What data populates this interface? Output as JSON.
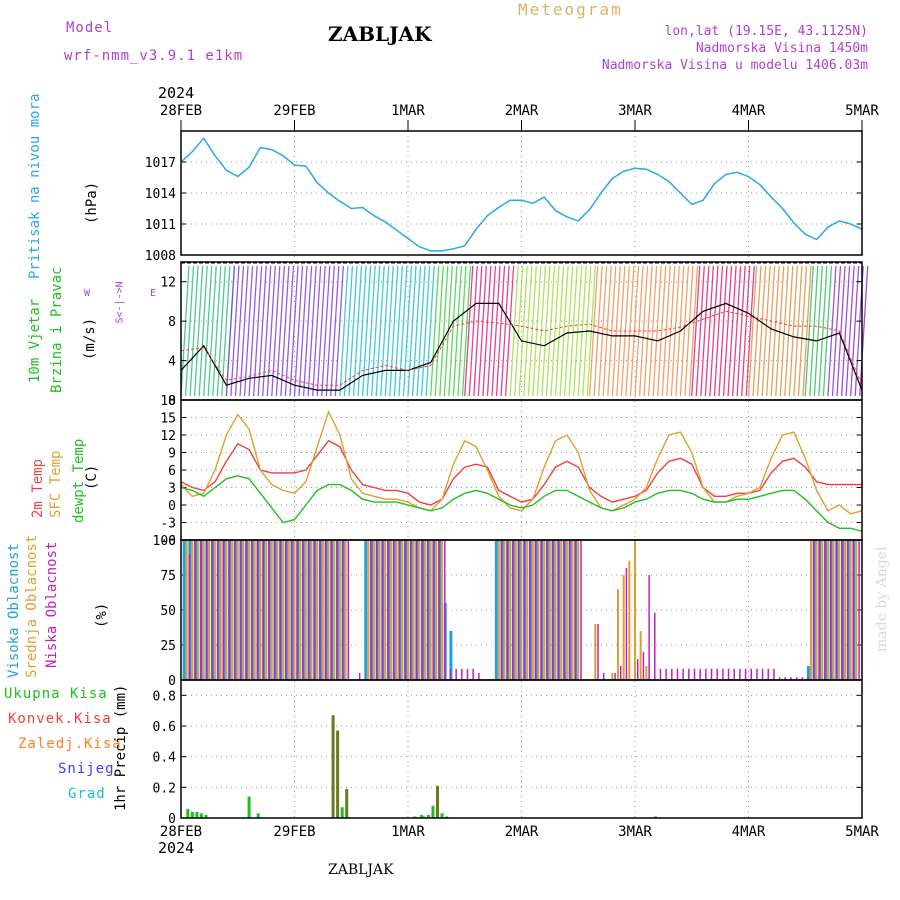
{
  "header": {
    "model_label": "Model",
    "model_name": "wrf-nmm_v3.9.1 e1km",
    "title": "ZABLJAK",
    "meteogram": "Meteogram",
    "lonlat": "lon,lat (19.15E, 43.1125N)",
    "elevation": "Nadmorska Visina 1450m",
    "model_elevation": "Nadmorska Visina u modelu 1406.03m",
    "footer_title": "ZABLJAK",
    "watermark": "made by Angel"
  },
  "x_axis": {
    "year_top": "2024",
    "year_bottom": "2024",
    "ticks": [
      "28FEB",
      "29FEB",
      "1MAR",
      "2MAR",
      "3MAR",
      "4MAR",
      "5MAR"
    ]
  },
  "colors": {
    "pressure": "#28a8e8",
    "temp2m": "#ee4040",
    "sfc": "#e0a030",
    "dewpt": "#20c020",
    "high_cloud": "#20a0e0",
    "mid_cloud": "#e0a030",
    "low_cloud": "#c020c0",
    "total_precip": "#20c020",
    "convective": "#ee4040",
    "frozen": "#ff8020",
    "snow": "#4040ee",
    "hail": "#20c0c0",
    "accum_bar": "#6b7a20"
  },
  "panels": {
    "pressure": {
      "label": "Pritisak na nivou mora",
      "unit": "(hPa)"
    },
    "wind": {
      "label1": "10m Vjetar",
      "label2": "Brzina i Pravac",
      "unit": "(m/s)",
      "compass_w": "W",
      "compass_e": "E",
      "compass_arrows": "α<-|->z",
      "compass_sn": "S<-|->N"
    },
    "temp": {
      "label1": "2m Temp",
      "label2": "SFC Temp",
      "label3": "dewpt Temp",
      "unit": "(C)"
    },
    "cloud": {
      "label1": "Visoka Oblacnost",
      "label2": "Srednja Oblacnost",
      "label3": "Niska Oblacnost",
      "unit": "(%)"
    },
    "precip": {
      "legend": [
        "Ukupna Kisa",
        "Konvek.Kisa",
        "Zaledj.Kisa",
        "Snijeg",
        "Grad"
      ],
      "ylabel": "1hr Precip (mm)"
    }
  },
  "chart_data": [
    {
      "type": "line",
      "panel": "pressure",
      "ylabel": "(hPa)",
      "ylim": [
        1008,
        1020
      ],
      "yticks": [
        "1008",
        "1011",
        "1014",
        "1017"
      ],
      "x_days": [
        0,
        0.1,
        0.2,
        0.3,
        0.4,
        0.5,
        0.6,
        0.7,
        0.8,
        0.9,
        1.0,
        1.1,
        1.2,
        1.3,
        1.4,
        1.5,
        1.6,
        1.7,
        1.8,
        1.9,
        2.0,
        2.1,
        2.2,
        2.3,
        2.4,
        2.5,
        2.6,
        2.7,
        2.8,
        2.9,
        3.0,
        3.1,
        3.2,
        3.3,
        3.4,
        3.5,
        3.6,
        3.7,
        3.8,
        3.9,
        4.0,
        4.1,
        4.2,
        4.3,
        4.4,
        4.5,
        4.6,
        4.7,
        4.8,
        4.9,
        5.0,
        5.1,
        5.2,
        5.3,
        5.4,
        5.5,
        5.6,
        5.7,
        5.8,
        5.9,
        6.0
      ],
      "series": [
        {
          "values": [
            1017,
            1018,
            1019.3,
            1017.6,
            1016.2,
            1015.6,
            1016.5,
            1018.4,
            1018.2,
            1017.6,
            1016.7,
            1016.6,
            1015.0,
            1014.0,
            1013.2,
            1012.5,
            1012.6,
            1011.8,
            1011.2,
            1010.4,
            1009.6,
            1008.8,
            1008.4,
            1008.4,
            1008.6,
            1008.9,
            1010.5,
            1011.8,
            1012.6,
            1013.3,
            1013.3,
            1013.0,
            1013.6,
            1012.3,
            1011.7,
            1011.3,
            1012.4,
            1014.0,
            1015.4,
            1016.1,
            1016.4,
            1016.3,
            1015.8,
            1015.1,
            1014.0,
            1012.9,
            1013.3,
            1014.9,
            1015.8,
            1016.0,
            1015.6,
            1014.8,
            1013.6,
            1012.5,
            1011.1,
            1010.0,
            1009.5,
            1010.7,
            1011.3,
            1011.0,
            1010.5
          ]
        }
      ]
    },
    {
      "type": "line",
      "panel": "wind",
      "ylabel": "(m/s)",
      "ylim": [
        0,
        14
      ],
      "yticks": [
        "0",
        "4",
        "8",
        "12"
      ],
      "x_days": [
        0,
        0.2,
        0.4,
        0.6,
        0.8,
        1.0,
        1.2,
        1.4,
        1.6,
        1.8,
        2.0,
        2.2,
        2.4,
        2.6,
        2.8,
        3.0,
        3.2,
        3.4,
        3.6,
        3.8,
        4.0,
        4.2,
        4.4,
        4.6,
        4.8,
        5.0,
        5.2,
        5.4,
        5.6,
        5.8,
        6.0
      ],
      "series": [
        {
          "values": [
            3,
            5.5,
            1.5,
            2.2,
            2.5,
            1.5,
            1.0,
            1.0,
            2.5,
            3.0,
            3.0,
            3.8,
            8.0,
            9.8,
            9.8,
            6.0,
            5.5,
            6.8,
            7.0,
            6.5,
            6.5,
            6.0,
            7.0,
            9.0,
            9.8,
            8.8,
            7.2,
            6.4,
            6.0,
            6.8,
            1.0
          ]
        },
        {
          "values": [
            5,
            5.3,
            2.0,
            2.4,
            3.0,
            2.0,
            1.5,
            1.5,
            3.0,
            3.5,
            3.0,
            3.5,
            7.5,
            8.0,
            7.8,
            7.5,
            7.0,
            7.5,
            7.7,
            7.0,
            7.0,
            7.0,
            7.4,
            8.2,
            9.0,
            8.5,
            8.0,
            7.5,
            7.5,
            7.0,
            1.5
          ]
        }
      ]
    },
    {
      "type": "line",
      "panel": "temp",
      "ylabel": "(C)",
      "ylim": [
        -6,
        18
      ],
      "yticks": [
        "-6",
        "-3",
        "0",
        "3",
        "6",
        "9",
        "12",
        "15",
        "18"
      ],
      "x_days": [
        0,
        0.1,
        0.2,
        0.3,
        0.4,
        0.5,
        0.6,
        0.7,
        0.8,
        0.9,
        1.0,
        1.1,
        1.2,
        1.3,
        1.4,
        1.5,
        1.6,
        1.7,
        1.8,
        1.9,
        2.0,
        2.1,
        2.2,
        2.3,
        2.4,
        2.5,
        2.6,
        2.7,
        2.8,
        2.9,
        3.0,
        3.1,
        3.2,
        3.3,
        3.4,
        3.5,
        3.6,
        3.7,
        3.8,
        3.9,
        4.0,
        4.1,
        4.2,
        4.3,
        4.4,
        4.5,
        4.6,
        4.7,
        4.8,
        4.9,
        5.0,
        5.1,
        5.2,
        5.3,
        5.4,
        5.5,
        5.6,
        5.7,
        5.8,
        5.9,
        6.0
      ],
      "series": [
        {
          "name": "2m Temp",
          "values": [
            4,
            3,
            2.5,
            4,
            7.5,
            10.5,
            9.5,
            6,
            5.5,
            5.5,
            5.5,
            6,
            8.5,
            11,
            10,
            6,
            3.5,
            3,
            2.5,
            2.5,
            2.0,
            0.5,
            0,
            1,
            4.5,
            6.5,
            7,
            6.5,
            2.5,
            1.5,
            0.5,
            1,
            3.5,
            6.5,
            7.5,
            6.5,
            3,
            1.5,
            0.5,
            1,
            1.5,
            2.5,
            5.5,
            7.5,
            8,
            7,
            3,
            1.5,
            1.5,
            2,
            2,
            2.5,
            5.5,
            7.5,
            8,
            6.5,
            4,
            3.5,
            3.5,
            3.5,
            3.5
          ]
        },
        {
          "name": "SFC Temp",
          "values": [
            3.5,
            1.5,
            2,
            6,
            12,
            15.5,
            13,
            6,
            3.5,
            2.5,
            2,
            4,
            10,
            16,
            12,
            4.5,
            2,
            1.5,
            1,
            1,
            0.5,
            -0.5,
            -1,
            1,
            7,
            11,
            10,
            6,
            1.5,
            -0.5,
            -1,
            1,
            6.5,
            11,
            12,
            9,
            2.5,
            -0.5,
            -1,
            0,
            1,
            3,
            8,
            12,
            12.5,
            9,
            3,
            0.5,
            0.5,
            1.5,
            2,
            3,
            8,
            12,
            12.5,
            8,
            2.5,
            -1,
            0,
            -1.5,
            -1
          ]
        },
        {
          "name": "dewpt Temp",
          "values": [
            3,
            2.5,
            1.5,
            3,
            4.5,
            5,
            4.5,
            2,
            -0.5,
            -3,
            -2.5,
            0,
            2.5,
            3.5,
            3.5,
            2.5,
            1,
            0.5,
            0.5,
            0.5,
            0,
            -0.5,
            -1,
            -0.5,
            1,
            2,
            2.5,
            2,
            1,
            0,
            -0.5,
            0,
            1.5,
            2.5,
            2.5,
            1.5,
            0.5,
            -0.5,
            -1,
            -0.5,
            0.5,
            1,
            2,
            2.5,
            2.5,
            2,
            1,
            0.5,
            0.5,
            1,
            1,
            1.5,
            2,
            2.5,
            2.5,
            1,
            -1,
            -3,
            -4,
            -4,
            -4.5
          ]
        }
      ]
    },
    {
      "type": "bar",
      "panel": "cloud",
      "ylabel": "(%)",
      "ylim": [
        0,
        100
      ],
      "yticks": [
        "0",
        "25",
        "50",
        "75",
        "100"
      ],
      "x_days": [
        0.05,
        0.1,
        0.15,
        0.2,
        0.25,
        0.3,
        0.35,
        0.4,
        0.45,
        0.5,
        0.55,
        0.6,
        0.65,
        0.7,
        0.75,
        0.8,
        0.85,
        0.9,
        0.95,
        1.0,
        1.05,
        1.1,
        1.15,
        1.2,
        1.25,
        1.3,
        1.35,
        1.4,
        1.45,
        1.5,
        1.55,
        1.6,
        1.65,
        1.7,
        1.75,
        1.8,
        1.85,
        1.9,
        1.95,
        2.0,
        2.05,
        2.1,
        2.15,
        2.2,
        2.25,
        2.3,
        2.35,
        2.4,
        2.45,
        2.5,
        2.55,
        2.6,
        2.65,
        2.7,
        2.75,
        2.8,
        2.85,
        2.9,
        2.95,
        3.0,
        3.05,
        3.1,
        3.15,
        3.2,
        3.25,
        3.3,
        3.35,
        3.4,
        3.45,
        3.5,
        3.55,
        3.6,
        3.65,
        3.7,
        3.75,
        3.8,
        3.85,
        3.9,
        3.95,
        4.0,
        4.05,
        4.1,
        4.15,
        4.2,
        4.25,
        4.3,
        4.35,
        4.4,
        4.45,
        4.5,
        4.55,
        4.6,
        4.65,
        4.7,
        4.75,
        4.8,
        4.85,
        4.9,
        4.95,
        5.0,
        5.05,
        5.1,
        5.15,
        5.2,
        5.25,
        5.3,
        5.35,
        5.4,
        5.45,
        5.5,
        5.55,
        5.6,
        5.65,
        5.7,
        5.75,
        5.8,
        5.85,
        5.9,
        5.95
      ],
      "series": [
        {
          "name": "Visoka Oblacnost",
          "values": [
            100,
            100,
            100,
            100,
            100,
            100,
            100,
            100,
            100,
            100,
            100,
            100,
            100,
            100,
            100,
            100,
            100,
            100,
            100,
            100,
            100,
            100,
            100,
            100,
            100,
            100,
            100,
            100,
            100,
            0,
            0,
            0,
            100,
            100,
            100,
            100,
            100,
            100,
            100,
            100,
            100,
            100,
            100,
            100,
            100,
            100,
            55,
            35,
            0,
            0,
            0,
            0,
            0,
            0,
            0,
            100,
            100,
            100,
            100,
            100,
            100,
            100,
            100,
            100,
            100,
            100,
            100,
            100,
            100,
            100,
            0,
            0,
            0,
            0,
            0,
            0,
            0,
            0,
            0,
            0,
            0,
            0,
            0,
            0,
            0,
            0,
            0,
            0,
            0,
            0,
            0,
            0,
            0,
            0,
            0,
            0,
            0,
            0,
            0,
            0,
            0,
            0,
            0,
            0,
            0,
            0,
            0,
            0,
            0,
            0,
            10,
            100,
            100,
            100,
            100,
            100,
            100,
            100,
            100
          ]
        },
        {
          "name": "Srednja Oblacnost",
          "values": [
            100,
            100,
            100,
            100,
            100,
            100,
            100,
            100,
            100,
            100,
            100,
            100,
            100,
            100,
            100,
            100,
            100,
            100,
            100,
            100,
            100,
            100,
            100,
            100,
            100,
            100,
            100,
            100,
            100,
            0,
            0,
            0,
            100,
            100,
            100,
            100,
            100,
            100,
            100,
            100,
            100,
            100,
            100,
            100,
            100,
            100,
            0,
            0,
            0,
            0,
            0,
            0,
            0,
            0,
            0,
            100,
            100,
            100,
            100,
            100,
            100,
            100,
            100,
            100,
            100,
            100,
            100,
            100,
            100,
            100,
            0,
            0,
            40,
            0,
            0,
            5,
            65,
            75,
            85,
            100,
            35,
            10,
            0,
            0,
            0,
            0,
            0,
            0,
            0,
            0,
            0,
            0,
            0,
            0,
            0,
            0,
            0,
            0,
            0,
            0,
            0,
            0,
            0,
            0,
            0,
            0,
            0,
            0,
            0,
            0,
            100,
            100,
            100,
            100,
            100,
            100,
            100,
            100,
            100
          ]
        },
        {
          "name": "Niska Oblacnost",
          "values": [
            90,
            100,
            100,
            100,
            100,
            100,
            100,
            100,
            100,
            100,
            100,
            100,
            100,
            100,
            100,
            100,
            100,
            100,
            100,
            100,
            100,
            100,
            100,
            100,
            100,
            100,
            100,
            100,
            100,
            0,
            5,
            0,
            100,
            100,
            100,
            100,
            100,
            100,
            100,
            100,
            100,
            100,
            100,
            100,
            100,
            100,
            8,
            8,
            8,
            8,
            8,
            5,
            0,
            0,
            0,
            100,
            100,
            100,
            100,
            100,
            100,
            100,
            100,
            100,
            100,
            100,
            100,
            100,
            100,
            100,
            0,
            0,
            40,
            5,
            0,
            5,
            10,
            80,
            0,
            15,
            20,
            75,
            48,
            8,
            8,
            8,
            8,
            8,
            8,
            8,
            8,
            8,
            8,
            8,
            8,
            8,
            8,
            8,
            8,
            8,
            8,
            8,
            8,
            8,
            2,
            2,
            2,
            2,
            2,
            2,
            100,
            100,
            100,
            100,
            100,
            100,
            100,
            100,
            100
          ]
        }
      ]
    },
    {
      "type": "bar",
      "panel": "precip",
      "ylabel": "1hr Precip (mm)",
      "ylim": [
        0,
        0.9
      ],
      "yticks": [
        "0",
        "0.2",
        "0.4",
        "0.6",
        "0.8"
      ],
      "x_days": [
        0.06,
        0.1,
        0.14,
        0.18,
        0.22,
        0.6,
        0.68,
        1.34,
        1.38,
        1.42,
        1.46,
        2.06,
        2.12,
        2.14,
        2.18,
        2.22,
        2.26,
        2.3,
        2.34,
        4.18
      ],
      "series": [
        {
          "name": "Ukupna Kisa",
          "values": [
            0.06,
            0.04,
            0.04,
            0.03,
            0.02,
            0.14,
            0.03,
            0.67,
            0.57,
            0.07,
            0.19,
            0.01,
            0.02,
            0.01,
            0.02,
            0.08,
            0.21,
            0.03,
            0.01,
            0.01
          ]
        }
      ]
    }
  ]
}
